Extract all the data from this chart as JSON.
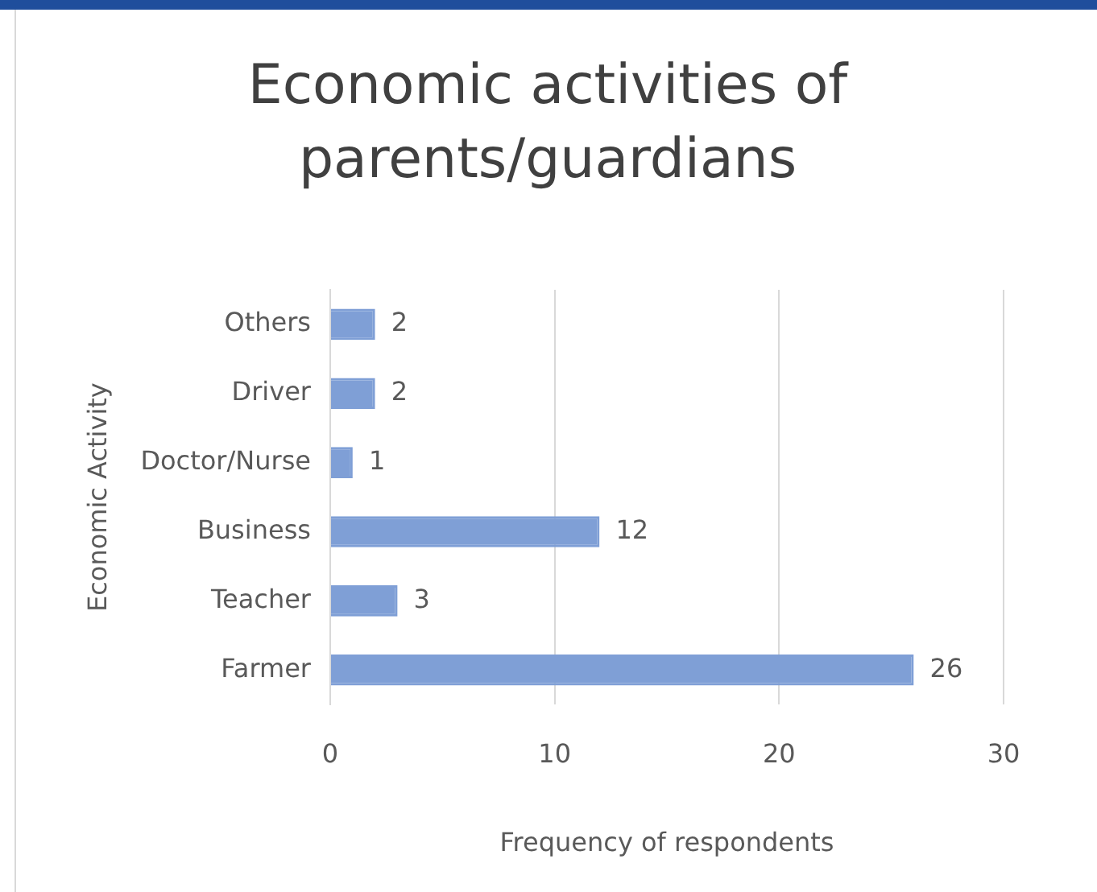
{
  "chart_data": {
    "type": "bar",
    "orientation": "horizontal",
    "title": "Economic activities of parents/guardians",
    "xlabel": "Frequency of respondents",
    "ylabel": "Economic Activity",
    "categories": [
      "Others",
      "Driver",
      "Doctor/Nurse",
      "Business",
      "Teacher",
      "Farmer"
    ],
    "values": [
      2,
      2,
      1,
      12,
      3,
      26
    ],
    "color": "#7f9fd6",
    "xlim": [
      0,
      30
    ],
    "xticks": [
      0,
      10,
      20,
      30
    ],
    "grid": "x",
    "data_labels": true,
    "legend": false
  }
}
